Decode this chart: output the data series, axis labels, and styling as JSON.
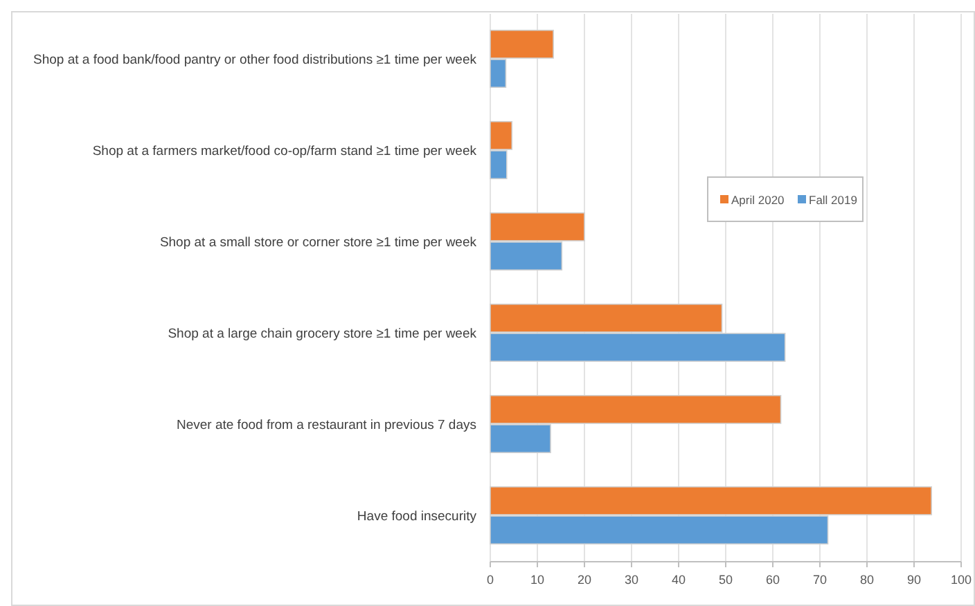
{
  "chart_data": {
    "type": "bar",
    "orientation": "horizontal",
    "categories": [
      "Shop at a food bank/food pantry or other food distributions ≥1 time per week",
      "Shop at a farmers market/food co-op/farm stand ≥1 time per week",
      "Shop at a small store or corner store ≥1 time per week",
      "Shop at a large chain grocery store ≥1 time per week",
      "Never ate food from a restaurant in previous 7 days",
      "Have food insecurity"
    ],
    "series": [
      {
        "name": "April 2020",
        "color": "#ed7d31",
        "values": [
          13.4,
          4.6,
          20,
          49.2,
          61.7,
          93.7
        ]
      },
      {
        "name": "Fall 2019",
        "color": "#5b9bd5",
        "values": [
          3.3,
          3.5,
          15.2,
          62.6,
          12.8,
          71.7
        ]
      }
    ],
    "xlim": [
      0,
      100
    ],
    "xticks": [
      0,
      10,
      20,
      30,
      40,
      50,
      60,
      70,
      80,
      90,
      100
    ],
    "grid": "x",
    "legend": "right"
  }
}
